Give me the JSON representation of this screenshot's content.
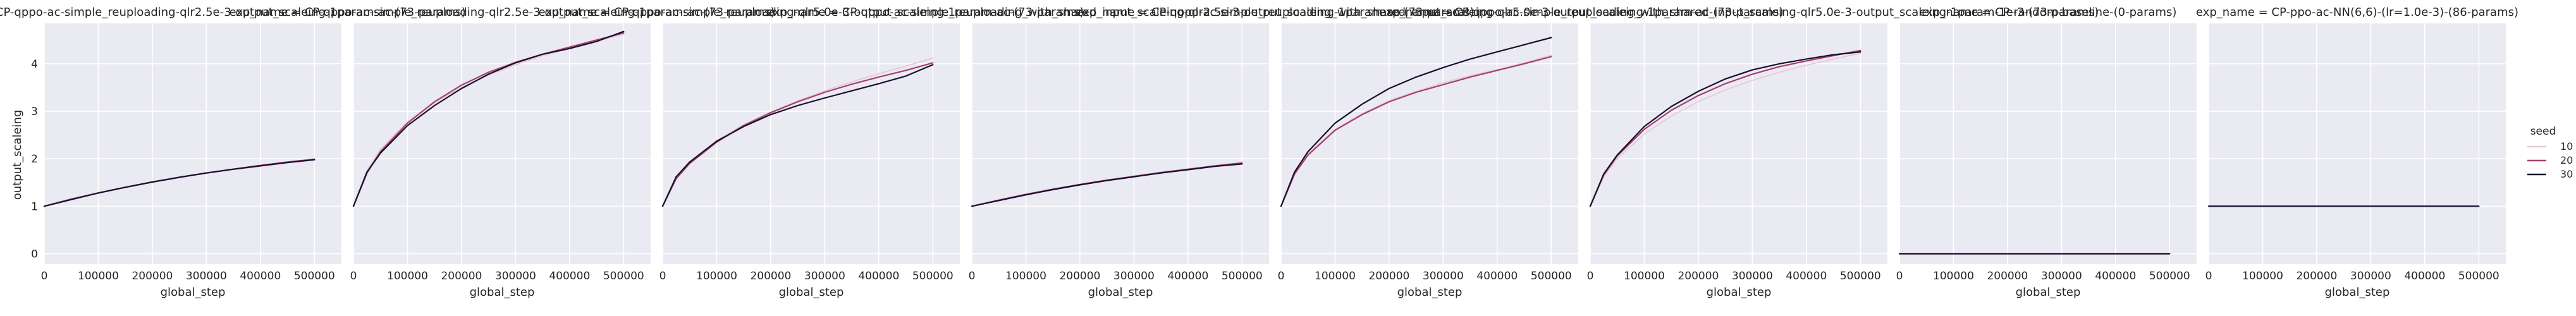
{
  "chart_data": {
    "type": "line",
    "ylabel": "output_scaleing",
    "xlabel": "global_step",
    "xlim": [
      0,
      550000
    ],
    "ylim": [
      -0.22,
      4.85
    ],
    "xticks": [
      0,
      100000,
      200000,
      300000,
      400000,
      500000
    ],
    "xtick_labels": [
      "0",
      "100000",
      "200000",
      "300000",
      "400000",
      "500000"
    ],
    "yticks": [
      0,
      1,
      2,
      3,
      4
    ],
    "ytick_labels": [
      "0",
      "1",
      "2",
      "3",
      "4"
    ],
    "grid": true,
    "legend": {
      "title": "seed",
      "placement": "right",
      "entries": [
        {
          "label": "10",
          "color": "#e8c8d6"
        },
        {
          "label": "20",
          "color": "#a3406e"
        },
        {
          "label": "30",
          "color": "#1a0f2e"
        }
      ]
    },
    "panels": [
      {
        "title": "exp_name = CP-qppo-ac-simple_reuploading-qlr2.5e-3-output_scaleing-1param-ac-(73-params)",
        "series": [
          {
            "name": "10",
            "x": [
              0,
              50000,
              100000,
              150000,
              200000,
              250000,
              300000,
              350000,
              400000,
              450000,
              500000
            ],
            "y": [
              1.0,
              1.14,
              1.27,
              1.39,
              1.5,
              1.6,
              1.69,
              1.77,
              1.84,
              1.91,
              1.97
            ]
          },
          {
            "name": "20",
            "x": [
              0,
              50000,
              100000,
              150000,
              200000,
              250000,
              300000,
              350000,
              400000,
              450000,
              500000
            ],
            "y": [
              1.0,
              1.15,
              1.28,
              1.4,
              1.51,
              1.61,
              1.7,
              1.78,
              1.86,
              1.93,
              1.99
            ]
          },
          {
            "name": "30",
            "x": [
              0,
              50000,
              100000,
              150000,
              200000,
              250000,
              300000,
              350000,
              400000,
              450000,
              500000
            ],
            "y": [
              1.0,
              1.14,
              1.28,
              1.4,
              1.51,
              1.61,
              1.7,
              1.78,
              1.85,
              1.92,
              1.98
            ]
          }
        ]
      },
      {
        "title": "exp_name = CP-qppo-ac-simple_reuploading-qlr2.5e-3-output_scaleing-1param-ac-(73-params)",
        "series": [
          {
            "name": "10",
            "x": [
              0,
              25000,
              50000,
              100000,
              150000,
              200000,
              250000,
              300000,
              350000,
              400000,
              450000,
              500000
            ],
            "y": [
              1.0,
              1.75,
              2.2,
              2.78,
              3.18,
              3.5,
              3.76,
              3.98,
              4.17,
              4.33,
              4.48,
              4.62
            ]
          },
          {
            "name": "20",
            "x": [
              0,
              25000,
              50000,
              100000,
              150000,
              200000,
              250000,
              300000,
              350000,
              400000,
              450000,
              500000
            ],
            "y": [
              1.0,
              1.7,
              2.15,
              2.75,
              3.2,
              3.55,
              3.82,
              4.03,
              4.2,
              4.35,
              4.5,
              4.65
            ]
          },
          {
            "name": "30",
            "x": [
              0,
              25000,
              50000,
              100000,
              150000,
              200000,
              250000,
              300000,
              350000,
              400000,
              450000,
              500000
            ],
            "y": [
              1.0,
              1.72,
              2.12,
              2.7,
              3.12,
              3.48,
              3.78,
              4.02,
              4.2,
              4.32,
              4.47,
              4.68
            ]
          }
        ]
      },
      {
        "title": "exp_name = CP-qppo-ac-simple_reuploading-qlr5.0e-3-output_scaleing-1param-ac-(73-params)",
        "series": [
          {
            "name": "10",
            "x": [
              0,
              25000,
              50000,
              100000,
              150000,
              200000,
              250000,
              300000,
              350000,
              400000,
              450000,
              500000
            ],
            "y": [
              1.0,
              1.6,
              1.92,
              2.38,
              2.72,
              2.98,
              3.22,
              3.43,
              3.62,
              3.79,
              3.95,
              4.12
            ]
          },
          {
            "name": "20",
            "x": [
              0,
              25000,
              50000,
              100000,
              150000,
              200000,
              250000,
              300000,
              350000,
              400000,
              450000,
              500000
            ],
            "y": [
              1.0,
              1.58,
              1.9,
              2.35,
              2.7,
              2.97,
              3.2,
              3.4,
              3.57,
              3.72,
              3.86,
              4.02
            ]
          },
          {
            "name": "30",
            "x": [
              0,
              25000,
              50000,
              100000,
              150000,
              200000,
              250000,
              300000,
              350000,
              400000,
              450000,
              500000
            ],
            "y": [
              1.0,
              1.62,
              1.93,
              2.37,
              2.68,
              2.93,
              3.12,
              3.28,
              3.43,
              3.58,
              3.74,
              3.98
            ]
          }
        ]
      },
      {
        "title": "exp_name = CP-qppo-ac-simple_reuploading_with_shared_input_scaleing-qlr2.5e-3-output_scaleing-1param-ac-(73-params)",
        "series": [
          {
            "name": "10",
            "x": [
              0,
              50000,
              100000,
              150000,
              200000,
              250000,
              300000,
              350000,
              400000,
              450000,
              500000
            ],
            "y": [
              1.0,
              1.13,
              1.25,
              1.36,
              1.46,
              1.55,
              1.63,
              1.71,
              1.78,
              1.85,
              1.92
            ]
          },
          {
            "name": "20",
            "x": [
              0,
              50000,
              100000,
              150000,
              200000,
              250000,
              300000,
              350000,
              400000,
              450000,
              500000
            ],
            "y": [
              1.0,
              1.13,
              1.25,
              1.36,
              1.46,
              1.55,
              1.63,
              1.71,
              1.78,
              1.85,
              1.91
            ]
          },
          {
            "name": "30",
            "x": [
              0,
              50000,
              100000,
              150000,
              200000,
              250000,
              300000,
              350000,
              400000,
              450000,
              500000
            ],
            "y": [
              1.0,
              1.12,
              1.24,
              1.35,
              1.45,
              1.54,
              1.62,
              1.7,
              1.77,
              1.84,
              1.89
            ]
          }
        ]
      },
      {
        "title": "exp_name = CP-qppo-ac-simple_reuploading_with_shared_input_scaleing-qlr5.0e-3-output_scaleing-1param-ac-(73-params)",
        "series": [
          {
            "name": "10",
            "x": [
              0,
              25000,
              50000,
              100000,
              150000,
              200000,
              250000,
              300000,
              350000,
              400000,
              450000,
              500000
            ],
            "y": [
              1.0,
              1.7,
              2.1,
              2.62,
              2.95,
              3.22,
              3.42,
              3.6,
              3.75,
              3.88,
              4.02,
              4.18
            ]
          },
          {
            "name": "20",
            "x": [
              0,
              25000,
              50000,
              100000,
              150000,
              200000,
              250000,
              300000,
              350000,
              400000,
              450000,
              500000
            ],
            "y": [
              1.0,
              1.68,
              2.08,
              2.6,
              2.93,
              3.2,
              3.4,
              3.56,
              3.72,
              3.86,
              4.0,
              4.15
            ]
          },
          {
            "name": "30",
            "x": [
              0,
              25000,
              50000,
              100000,
              150000,
              200000,
              250000,
              300000,
              350000,
              400000,
              450000,
              500000
            ],
            "y": [
              1.0,
              1.72,
              2.15,
              2.75,
              3.15,
              3.48,
              3.72,
              3.92,
              4.1,
              4.25,
              4.4,
              4.55
            ]
          }
        ]
      },
      {
        "title": "exp_name = CP-qppo-ac-simple_reuploading_with_shared_input_scaleing-qlr5.0e-3-output_scaleing-1param-1e-3-(73-params)",
        "series": [
          {
            "name": "10",
            "x": [
              0,
              25000,
              50000,
              100000,
              150000,
              200000,
              250000,
              300000,
              350000,
              400000,
              450000,
              500000
            ],
            "y": [
              1.0,
              1.62,
              2.0,
              2.52,
              2.9,
              3.2,
              3.45,
              3.65,
              3.82,
              3.97,
              4.1,
              4.22
            ]
          },
          {
            "name": "20",
            "x": [
              0,
              25000,
              50000,
              100000,
              150000,
              200000,
              250000,
              300000,
              350000,
              400000,
              450000,
              500000
            ],
            "y": [
              1.0,
              1.66,
              2.06,
              2.62,
              3.02,
              3.33,
              3.58,
              3.78,
              3.94,
              4.06,
              4.17,
              4.28
            ]
          },
          {
            "name": "30",
            "x": [
              0,
              25000,
              50000,
              100000,
              150000,
              200000,
              250000,
              300000,
              350000,
              400000,
              450000,
              500000
            ],
            "y": [
              1.0,
              1.68,
              2.08,
              2.68,
              3.1,
              3.42,
              3.68,
              3.87,
              4.0,
              4.1,
              4.19,
              4.25
            ]
          }
        ]
      },
      {
        "title": "exp_name = CP-random-baseline-(0-params)",
        "series": [
          {
            "name": "10",
            "x": [
              0,
              500000
            ],
            "y": [
              0,
              0
            ]
          },
          {
            "name": "20",
            "x": [
              0,
              500000
            ],
            "y": [
              0,
              0
            ]
          },
          {
            "name": "30",
            "x": [
              0,
              500000
            ],
            "y": [
              0,
              0
            ]
          }
        ]
      },
      {
        "title": "exp_name = CP-ppo-ac-NN(6,6)-(lr=1.0e-3)-(86-params)",
        "series": [
          {
            "name": "10",
            "x": [
              0,
              500000
            ],
            "y": [
              1,
              1
            ]
          },
          {
            "name": "20",
            "x": [
              0,
              500000
            ],
            "y": [
              1,
              1
            ]
          },
          {
            "name": "30",
            "x": [
              0,
              500000
            ],
            "y": [
              1,
              1
            ]
          }
        ]
      }
    ]
  }
}
